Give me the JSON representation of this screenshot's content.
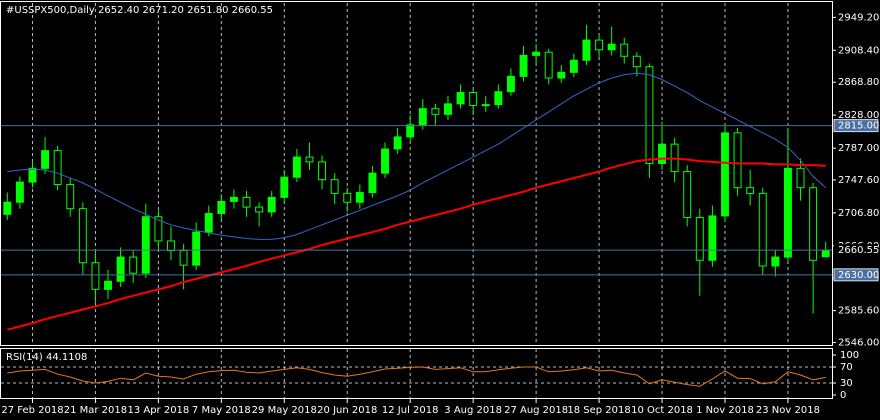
{
  "chart_data": {
    "type": "candlestick",
    "title": "#USSPX500,Daily  2652.40 2671.20 2651.80 2660.55",
    "ohlc": [
      [
        2705,
        2732,
        2698,
        2720
      ],
      [
        2720,
        2752,
        2712,
        2745
      ],
      [
        2745,
        2771,
        2738,
        2762
      ],
      [
        2762,
        2801,
        2755,
        2784
      ],
      [
        2784,
        2790,
        2735,
        2742
      ],
      [
        2742,
        2750,
        2702,
        2712
      ],
      [
        2712,
        2720,
        2630,
        2645
      ],
      [
        2645,
        2660,
        2595,
        2612
      ],
      [
        2612,
        2636,
        2600,
        2622
      ],
      [
        2622,
        2664,
        2615,
        2652
      ],
      [
        2652,
        2660,
        2620,
        2632
      ],
      [
        2632,
        2718,
        2626,
        2702
      ],
      [
        2702,
        2710,
        2662,
        2672
      ],
      [
        2672,
        2690,
        2648,
        2660
      ],
      [
        2660,
        2668,
        2612,
        2642
      ],
      [
        2642,
        2695,
        2636,
        2683
      ],
      [
        2683,
        2716,
        2678,
        2706
      ],
      [
        2706,
        2730,
        2698,
        2721
      ],
      [
        2721,
        2736,
        2712,
        2726
      ],
      [
        2726,
        2734,
        2702,
        2714
      ],
      [
        2714,
        2720,
        2690,
        2708
      ],
      [
        2708,
        2734,
        2702,
        2726
      ],
      [
        2726,
        2760,
        2720,
        2751
      ],
      [
        2751,
        2786,
        2745,
        2776
      ],
      [
        2776,
        2794,
        2760,
        2770
      ],
      [
        2770,
        2778,
        2736,
        2748
      ],
      [
        2748,
        2756,
        2718,
        2731
      ],
      [
        2731,
        2738,
        2708,
        2720
      ],
      [
        2720,
        2742,
        2712,
        2732
      ],
      [
        2732,
        2765,
        2726,
        2756
      ],
      [
        2756,
        2794,
        2750,
        2786
      ],
      [
        2786,
        2812,
        2780,
        2801
      ],
      [
        2801,
        2828,
        2795,
        2816
      ],
      [
        2816,
        2848,
        2810,
        2836
      ],
      [
        2836,
        2842,
        2816,
        2829
      ],
      [
        2829,
        2852,
        2822,
        2842
      ],
      [
        2842,
        2866,
        2836,
        2856
      ],
      [
        2856,
        2860,
        2828,
        2840
      ],
      [
        2840,
        2852,
        2832,
        2841
      ],
      [
        2841,
        2866,
        2836,
        2857
      ],
      [
        2857,
        2886,
        2852,
        2876
      ],
      [
        2876,
        2914,
        2870,
        2902
      ],
      [
        2902,
        2916,
        2892,
        2906
      ],
      [
        2906,
        2910,
        2866,
        2874
      ],
      [
        2874,
        2890,
        2868,
        2881
      ],
      [
        2881,
        2904,
        2875,
        2896
      ],
      [
        2896,
        2940,
        2890,
        2921
      ],
      [
        2921,
        2928,
        2900,
        2909
      ],
      [
        2909,
        2938,
        2902,
        2916
      ],
      [
        2916,
        2924,
        2892,
        2901
      ],
      [
        2901,
        2906,
        2876,
        2888
      ],
      [
        2888,
        2892,
        2750,
        2768
      ],
      [
        2768,
        2820,
        2760,
        2792
      ],
      [
        2792,
        2800,
        2745,
        2758
      ],
      [
        2758,
        2766,
        2690,
        2701
      ],
      [
        2701,
        2712,
        2604,
        2648
      ],
      [
        2648,
        2716,
        2640,
        2703
      ],
      [
        2703,
        2818,
        2696,
        2806
      ],
      [
        2806,
        2812,
        2728,
        2738
      ],
      [
        2738,
        2760,
        2716,
        2731
      ],
      [
        2731,
        2738,
        2630,
        2641
      ],
      [
        2641,
        2660,
        2628,
        2652
      ],
      [
        2652,
        2812,
        2646,
        2762
      ],
      [
        2762,
        2774,
        2722,
        2738
      ],
      [
        2738,
        2744,
        2582,
        2648
      ],
      [
        2652.4,
        2671.2,
        2651.8,
        2660.55
      ]
    ],
    "up_color": "#00ff00",
    "down_color": "#00ff00",
    "xlim": [
      -0.5,
      65.5
    ],
    "xticks": [
      {
        "value": 2,
        "label": "27 Feb 2018"
      },
      {
        "value": 7,
        "label": "21 Mar 2018"
      },
      {
        "value": 12,
        "label": "13 Apr 2018"
      },
      {
        "value": 17,
        "label": "7 May 2018"
      },
      {
        "value": 22,
        "label": "29 May 2018"
      },
      {
        "value": 27,
        "label": "20 Jun 2018"
      },
      {
        "value": 32,
        "label": "12 Jul 2018"
      },
      {
        "value": 37,
        "label": "3 Aug 2018"
      },
      {
        "value": 42,
        "label": "27 Aug 2018"
      },
      {
        "value": 47,
        "label": "18 Sep 2018"
      },
      {
        "value": 52,
        "label": "10 Oct 2018"
      },
      {
        "value": 57,
        "label": "1 Nov 2018"
      },
      {
        "value": 62,
        "label": "23 Nov 2018"
      }
    ],
    "ylim": [
      2543,
      2967
    ],
    "yticks": [
      {
        "value": 2949.2,
        "label": "2949.20"
      },
      {
        "value": 2908.4,
        "label": "2908.40"
      },
      {
        "value": 2868.8,
        "label": "2868.80"
      },
      {
        "value": 2828,
        "label": "2828.00"
      },
      {
        "value": 2787,
        "label": "2787.00"
      },
      {
        "value": 2747.6,
        "label": "2747.60"
      },
      {
        "value": 2706.8,
        "label": "2706.80"
      },
      {
        "value": 2666,
        "label": "2666.00"
      },
      {
        "value": 2626,
        "label": "2626.00"
      },
      {
        "value": 2585.6,
        "label": "2585.60"
      },
      {
        "value": 2546,
        "label": "2546.00"
      }
    ],
    "grid": true,
    "overlays": [
      {
        "color": "#3a64c8",
        "values": [
          2758,
          2760,
          2761,
          2760,
          2756,
          2750,
          2744,
          2736,
          2728,
          2720,
          2712,
          2705,
          2698,
          2692,
          2688,
          2685,
          2682,
          2679,
          2677,
          2675,
          2674,
          2674,
          2676,
          2680,
          2686,
          2692,
          2698,
          2704,
          2710,
          2716,
          2722,
          2728,
          2735,
          2744,
          2752,
          2760,
          2768,
          2776,
          2784,
          2792,
          2802,
          2812,
          2822,
          2832,
          2842,
          2852,
          2860,
          2868,
          2874,
          2878,
          2880,
          2878,
          2872,
          2864,
          2856,
          2846,
          2838,
          2830,
          2822,
          2814,
          2806,
          2798,
          2788,
          2772,
          2752,
          2738
        ]
      },
      {
        "color": "#ff0000",
        "values": [
          2562,
          2566,
          2570,
          2575,
          2579,
          2583,
          2587,
          2591,
          2595,
          2600,
          2604,
          2608,
          2612,
          2616,
          2621,
          2625,
          2629,
          2633,
          2637,
          2641,
          2646,
          2650,
          2654,
          2658,
          2662,
          2667,
          2671,
          2675,
          2679,
          2683,
          2687,
          2692,
          2696,
          2700,
          2704,
          2708,
          2712,
          2717,
          2721,
          2725,
          2729,
          2733,
          2738,
          2742,
          2746,
          2750,
          2754,
          2758,
          2763,
          2767,
          2771,
          2773,
          2774,
          2774,
          2773,
          2771,
          2770,
          2769,
          2768,
          2768,
          2768,
          2767,
          2767,
          2766,
          2766,
          2765
        ]
      }
    ],
    "hline_color": "#4a6fa5",
    "hlines": [
      {
        "value": 2815,
        "label": "2815.00"
      },
      2660.55,
      {
        "value": 2630,
        "label": "2630.00"
      }
    ],
    "rsi": {
      "title": "RSI(14) 44.1108",
      "color": "#e07a20",
      "ylim": [
        0,
        100
      ],
      "yticks": [
        100,
        70,
        30,
        0
      ],
      "levels": [
        70,
        30
      ],
      "values": [
        55,
        60,
        62,
        64,
        52,
        45,
        35,
        30,
        34,
        42,
        38,
        55,
        47,
        45,
        40,
        52,
        58,
        61,
        62,
        57,
        55,
        60,
        64,
        68,
        64,
        56,
        50,
        47,
        52,
        58,
        65,
        67,
        69,
        70,
        64,
        66,
        68,
        58,
        58,
        63,
        67,
        70,
        70,
        58,
        60,
        63,
        68,
        60,
        62,
        55,
        50,
        28,
        38,
        32,
        26,
        22,
        40,
        60,
        42,
        41,
        28,
        33,
        58,
        50,
        38,
        44.1108
      ]
    }
  }
}
